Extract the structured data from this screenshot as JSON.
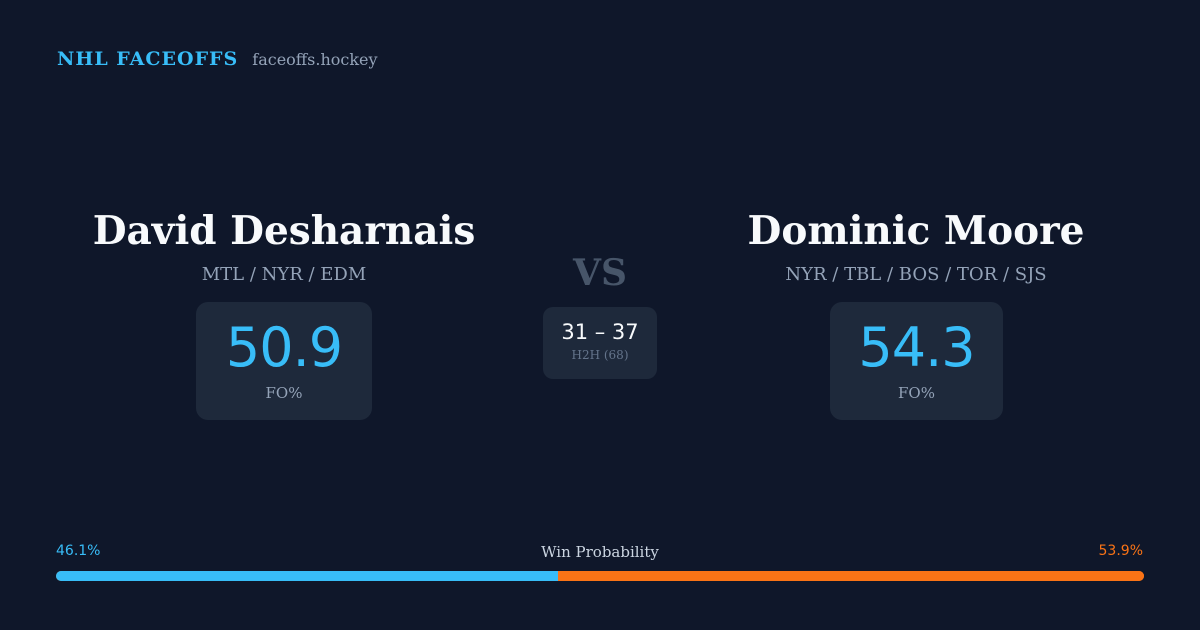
{
  "brand": {
    "title": "NHL FACEOFFS",
    "domain": "faceoffs.hockey"
  },
  "left_player": {
    "name": "David Desharnais",
    "teams": "MTL / NYR / EDM",
    "fo_value": "50.9",
    "fo_label": "FO%"
  },
  "right_player": {
    "name": "Dominic Moore",
    "teams": "NYR / TBL / BOS / TOR / SJS",
    "fo_value": "54.3",
    "fo_label": "FO%"
  },
  "vs_label": "VS",
  "h2h": {
    "score": "31 – 37",
    "label": "H2H (68)"
  },
  "win_probability": {
    "title": "Win Probability",
    "left_label": "46.1%",
    "right_label": "53.9%",
    "left_value": 46.1,
    "right_value": 53.9
  },
  "colors": {
    "background": "#0f172a",
    "card": "#1e293b",
    "accent_left": "#38bdf8",
    "accent_right": "#f97316",
    "muted": "#94a3b8"
  }
}
